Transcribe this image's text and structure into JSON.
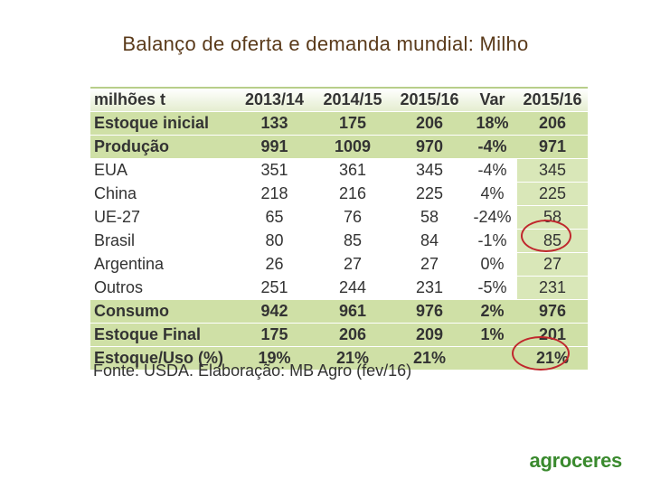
{
  "title": "Balanço de oferta e demanda mundial: Milho",
  "table": {
    "headers": [
      "milhões t",
      "2013/14",
      "2014/15",
      "2015/16",
      "Var",
      "2015/16"
    ],
    "rows": [
      {
        "label": "Estoque inicial",
        "values": [
          "133",
          "175",
          "206",
          "18%",
          "206"
        ],
        "bold": true
      },
      {
        "label": "Produção",
        "values": [
          "991",
          "1009",
          "970",
          "-4%",
          "971"
        ],
        "bold": true
      },
      {
        "label": "EUA",
        "values": [
          "351",
          "361",
          "345",
          "-4%",
          "345"
        ],
        "bold": false
      },
      {
        "label": "China",
        "values": [
          "218",
          "216",
          "225",
          "4%",
          "225"
        ],
        "bold": false
      },
      {
        "label": "UE-27",
        "values": [
          "65",
          "76",
          "58",
          "-24%",
          "58"
        ],
        "bold": false
      },
      {
        "label": "Brasil",
        "values": [
          "80",
          "85",
          "84",
          "-1%",
          "85"
        ],
        "bold": false
      },
      {
        "label": "Argentina",
        "values": [
          "26",
          "27",
          "27",
          "0%",
          "27"
        ],
        "bold": false
      },
      {
        "label": "Outros",
        "values": [
          "251",
          "244",
          "231",
          "-5%",
          "231"
        ],
        "bold": false
      },
      {
        "label": "Consumo",
        "values": [
          "942",
          "961",
          "976",
          "2%",
          "976"
        ],
        "bold": true
      },
      {
        "label": "Estoque Final",
        "values": [
          "175",
          "206",
          "209",
          "1%",
          "201"
        ],
        "bold": true
      },
      {
        "label": "Estoque/Uso (%)",
        "values": [
          "19%",
          "21%",
          "21%",
          "",
          "21%"
        ],
        "bold": true
      }
    ]
  },
  "source": "Fonte: USDA. Elaboração: MB Agro (fev/16)",
  "logo_text": "agroceres",
  "colors": {
    "title": "#5a3a1a",
    "row_highlight": "#cfe0a6",
    "circle": "#c0272d",
    "logo": "#3a8a2e"
  }
}
